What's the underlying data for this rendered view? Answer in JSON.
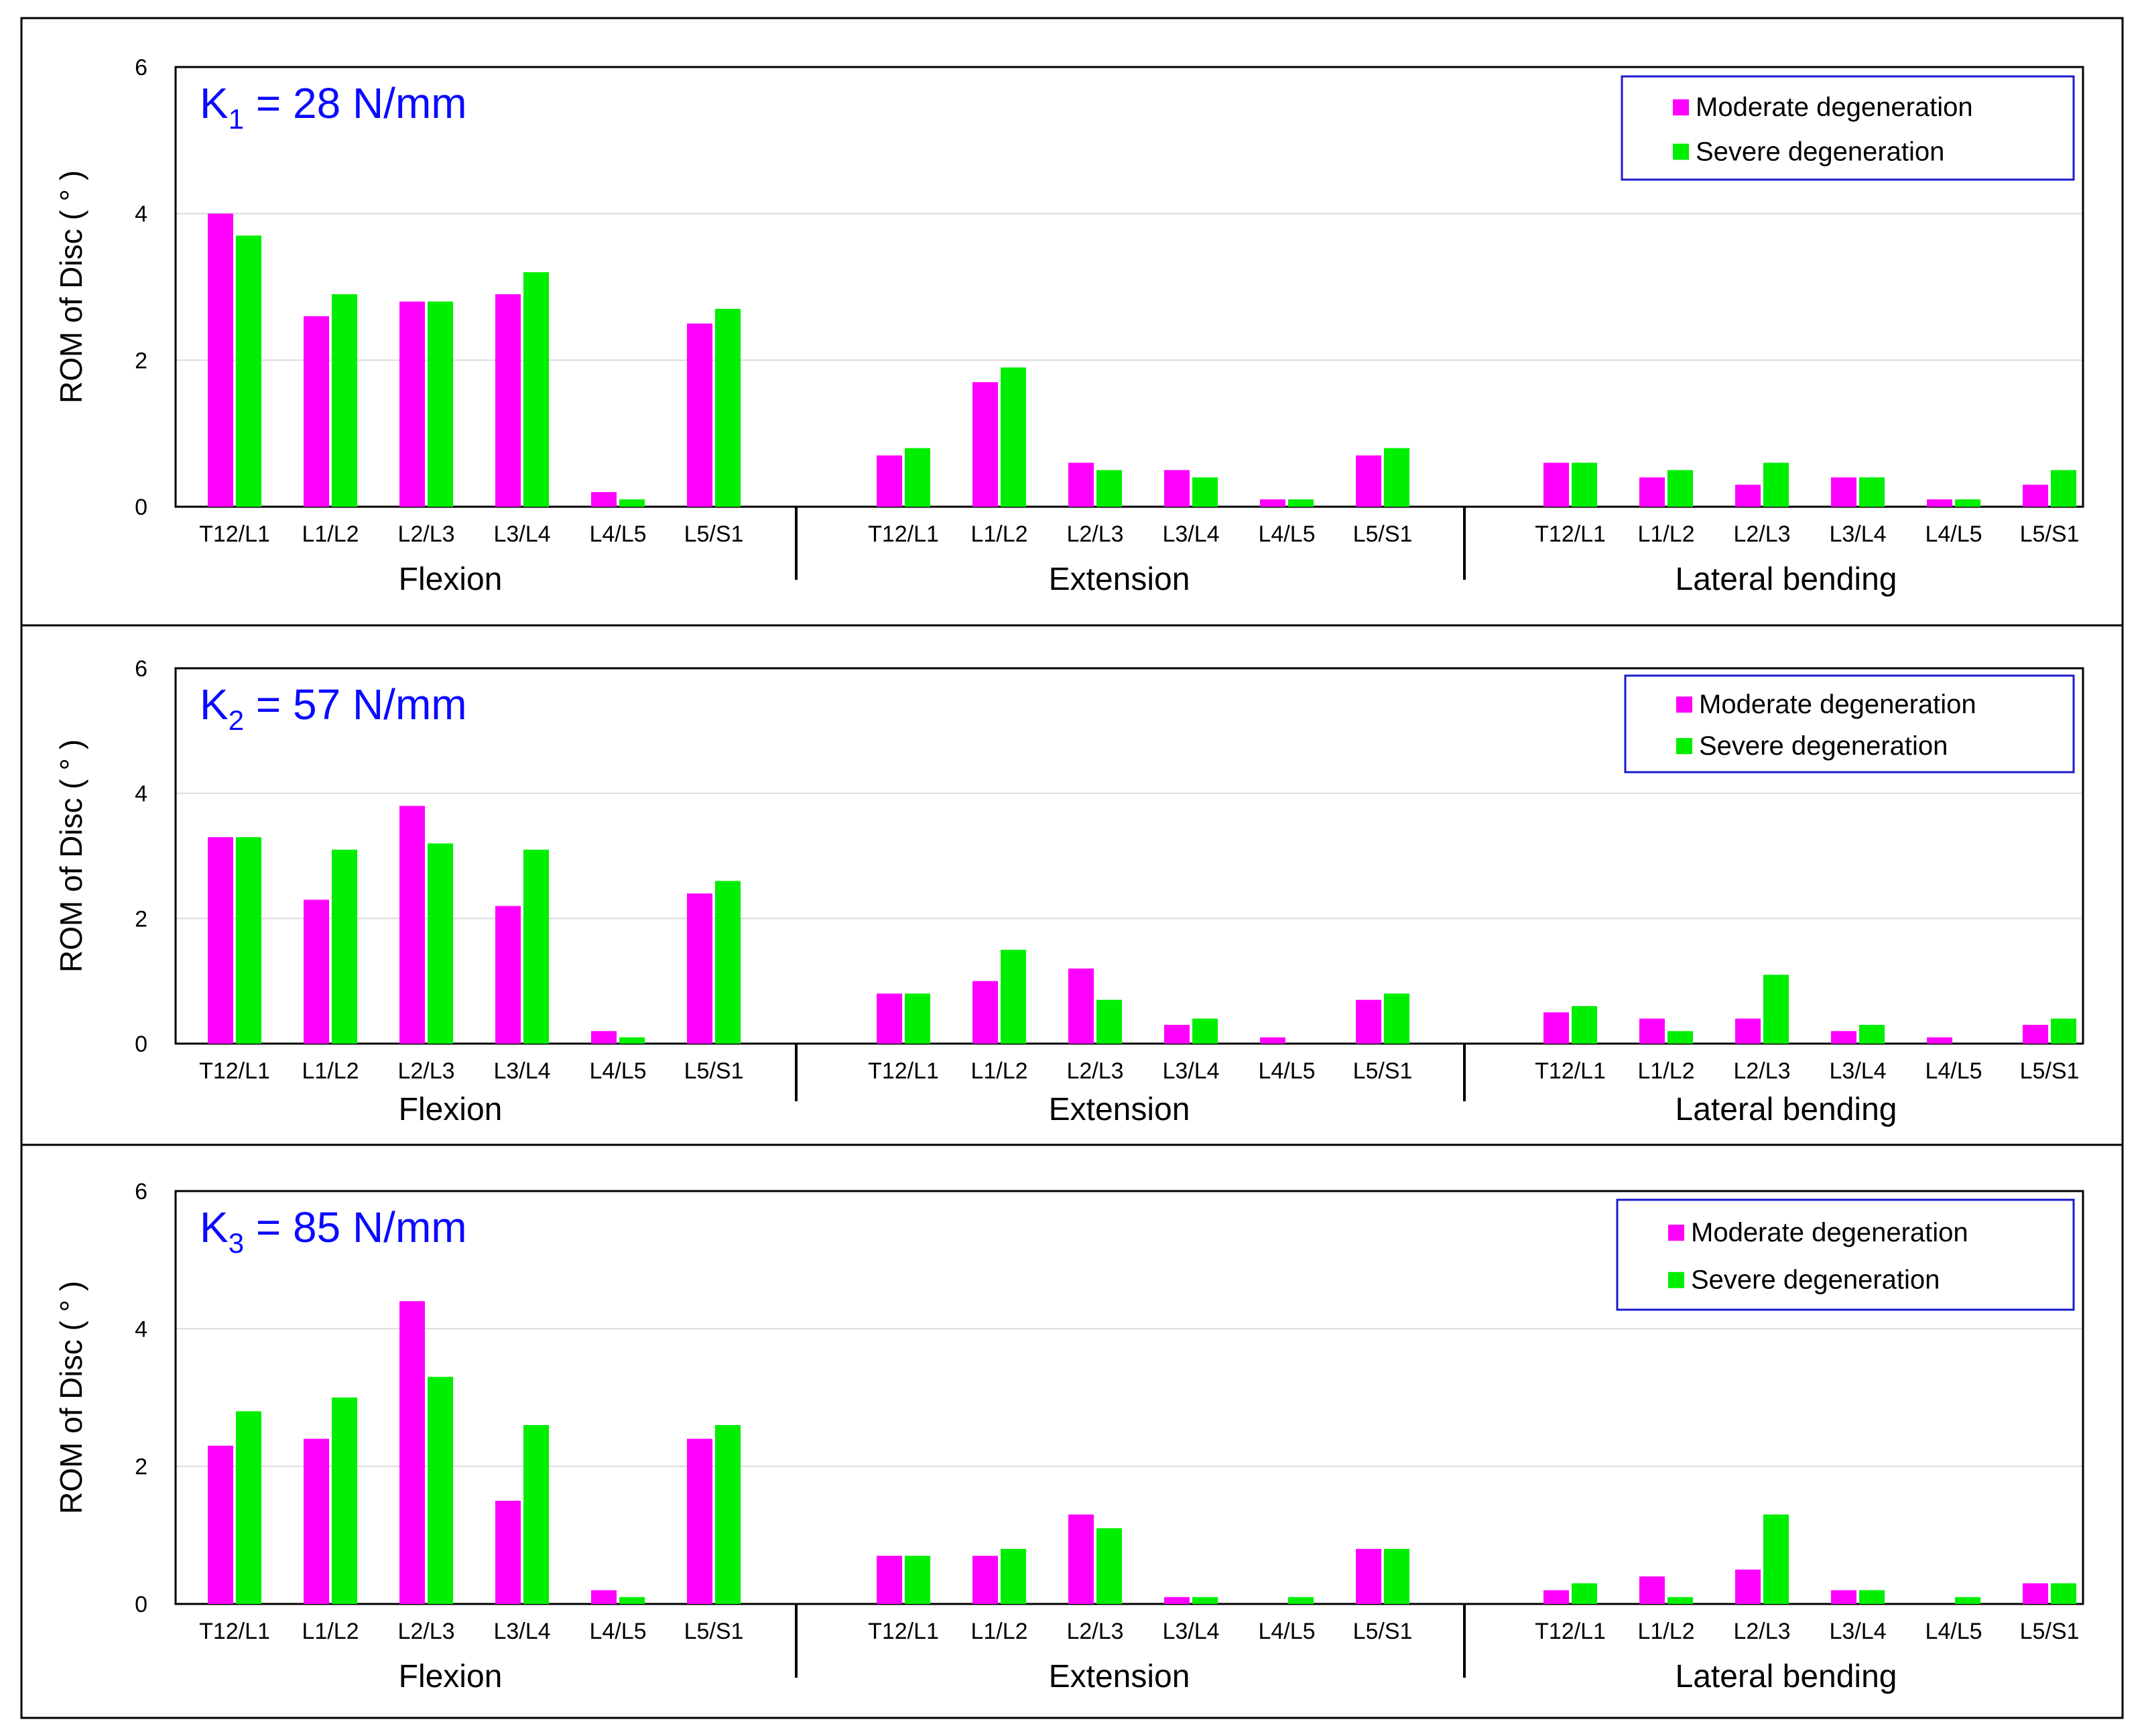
{
  "colors": {
    "moderate": "#ff00ff",
    "severe": "#00ee00",
    "title": "#0a0aff",
    "legend_border": "#1a1acc"
  },
  "legend": {
    "moderate": "Moderate degeneration",
    "severe": "Severe degeneration"
  },
  "chart_data": [
    {
      "type": "bar",
      "title": {
        "k": "K",
        "sub": "1",
        "rest": " = 28 N/mm"
      },
      "ylabel": "ROM of Disc ( ° )",
      "ylim": [
        0,
        6
      ],
      "yticks": [
        "0",
        "2",
        "4",
        "6"
      ],
      "categories": [
        "T12/L1",
        "L1/L2",
        "L2/L3",
        "L3/L4",
        "L4/L5",
        "L5/S1"
      ],
      "groups": [
        "Flexion",
        "Extension",
        "Lateral bending"
      ],
      "series": [
        {
          "name": "Moderate degeneration",
          "values": [
            [
              4.0,
              2.6,
              2.8,
              2.9,
              0.2,
              2.5
            ],
            [
              0.7,
              1.7,
              0.6,
              0.5,
              0.1,
              0.7
            ],
            [
              0.6,
              0.4,
              0.3,
              0.4,
              0.1,
              0.3
            ]
          ]
        },
        {
          "name": "Severe degeneration",
          "values": [
            [
              3.7,
              2.9,
              2.8,
              3.2,
              0.1,
              2.7
            ],
            [
              0.8,
              1.9,
              0.5,
              0.4,
              0.1,
              0.8
            ],
            [
              0.6,
              0.5,
              0.6,
              0.4,
              0.1,
              0.5
            ]
          ]
        }
      ]
    },
    {
      "type": "bar",
      "title": {
        "k": "K",
        "sub": "2",
        "rest": " = 57 N/mm"
      },
      "ylabel": "ROM of Disc ( ° )",
      "ylim": [
        0,
        6
      ],
      "yticks": [
        "0",
        "2",
        "4",
        "6"
      ],
      "categories": [
        "T12/L1",
        "L1/L2",
        "L2/L3",
        "L3/L4",
        "L4/L5",
        "L5/S1"
      ],
      "groups": [
        "Flexion",
        "Extension",
        "Lateral bending"
      ],
      "series": [
        {
          "name": "Moderate degeneration",
          "values": [
            [
              3.3,
              2.3,
              3.8,
              2.2,
              0.2,
              2.4
            ],
            [
              0.8,
              1.0,
              1.2,
              0.3,
              0.1,
              0.7
            ],
            [
              0.5,
              0.4,
              0.4,
              0.2,
              0.1,
              0.3
            ]
          ]
        },
        {
          "name": "Severe degeneration",
          "values": [
            [
              3.3,
              3.1,
              3.2,
              3.1,
              0.1,
              2.6
            ],
            [
              0.8,
              1.5,
              0.7,
              0.4,
              0.0,
              0.8
            ],
            [
              0.6,
              0.2,
              1.1,
              0.3,
              0.0,
              0.4
            ]
          ]
        }
      ]
    },
    {
      "type": "bar",
      "title": {
        "k": "K",
        "sub": "3",
        "rest": " = 85 N/mm"
      },
      "ylabel": "ROM of Disc ( ° )",
      "ylim": [
        0,
        6
      ],
      "yticks": [
        "0",
        "2",
        "4",
        "6"
      ],
      "categories": [
        "T12/L1",
        "L1/L2",
        "L2/L3",
        "L3/L4",
        "L4/L5",
        "L5/S1"
      ],
      "groups": [
        "Flexion",
        "Extension",
        "Lateral bending"
      ],
      "series": [
        {
          "name": "Moderate degeneration",
          "values": [
            [
              2.3,
              2.4,
              4.4,
              1.5,
              0.2,
              2.4
            ],
            [
              0.7,
              0.7,
              1.3,
              0.1,
              0.0,
              0.8
            ],
            [
              0.2,
              0.4,
              0.5,
              0.2,
              0.0,
              0.3
            ]
          ]
        },
        {
          "name": "Severe degeneration",
          "values": [
            [
              2.8,
              3.0,
              3.3,
              2.6,
              0.1,
              2.6
            ],
            [
              0.7,
              0.8,
              1.1,
              0.1,
              0.1,
              0.8
            ],
            [
              0.3,
              0.1,
              1.3,
              0.2,
              0.1,
              0.3
            ]
          ]
        }
      ]
    }
  ]
}
